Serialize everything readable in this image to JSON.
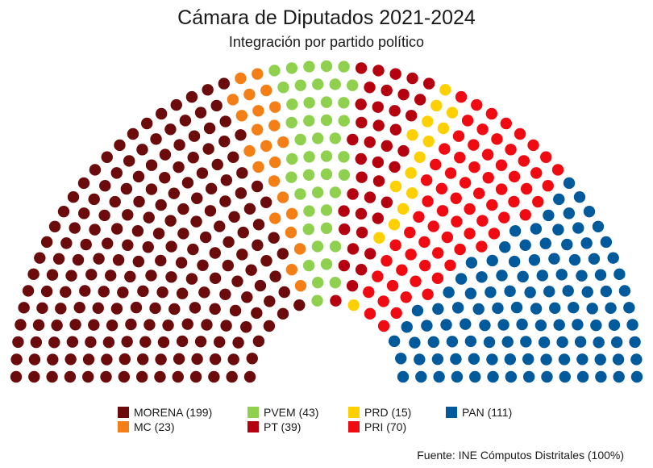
{
  "chart_data": {
    "type": "parliament",
    "title": "Cámara de Diputados 2021-2024",
    "subtitle": "Integración por partido político",
    "total_seats": 500,
    "parties": [
      {
        "name": "MORENA",
        "label": "MORENA (199)",
        "seats": 199,
        "color": "#6b0b0b"
      },
      {
        "name": "MC",
        "label": "MC (23)",
        "seats": 23,
        "color": "#f57f17"
      },
      {
        "name": "PVEM",
        "label": "PVEM (43)",
        "seats": 43,
        "color": "#8fd14f"
      },
      {
        "name": "PT",
        "label": "PT (39)",
        "seats": 39,
        "color": "#b5000f"
      },
      {
        "name": "PRD",
        "label": "PRD (15)",
        "seats": 15,
        "color": "#ffd000"
      },
      {
        "name": "PRI",
        "label": "PRI (70)",
        "seats": 70,
        "color": "#f00a12"
      },
      {
        "name": "PAN",
        "label": "PAN (111)",
        "seats": 111,
        "color": "#005a9c"
      }
    ],
    "legend_order": [
      "MORENA",
      "MC",
      "PVEM",
      "PT",
      "PRD",
      "PRI",
      "PAN"
    ],
    "legend_placement": "bottom",
    "source": "Fuente: INE Cómputos Distritales (100%)"
  }
}
